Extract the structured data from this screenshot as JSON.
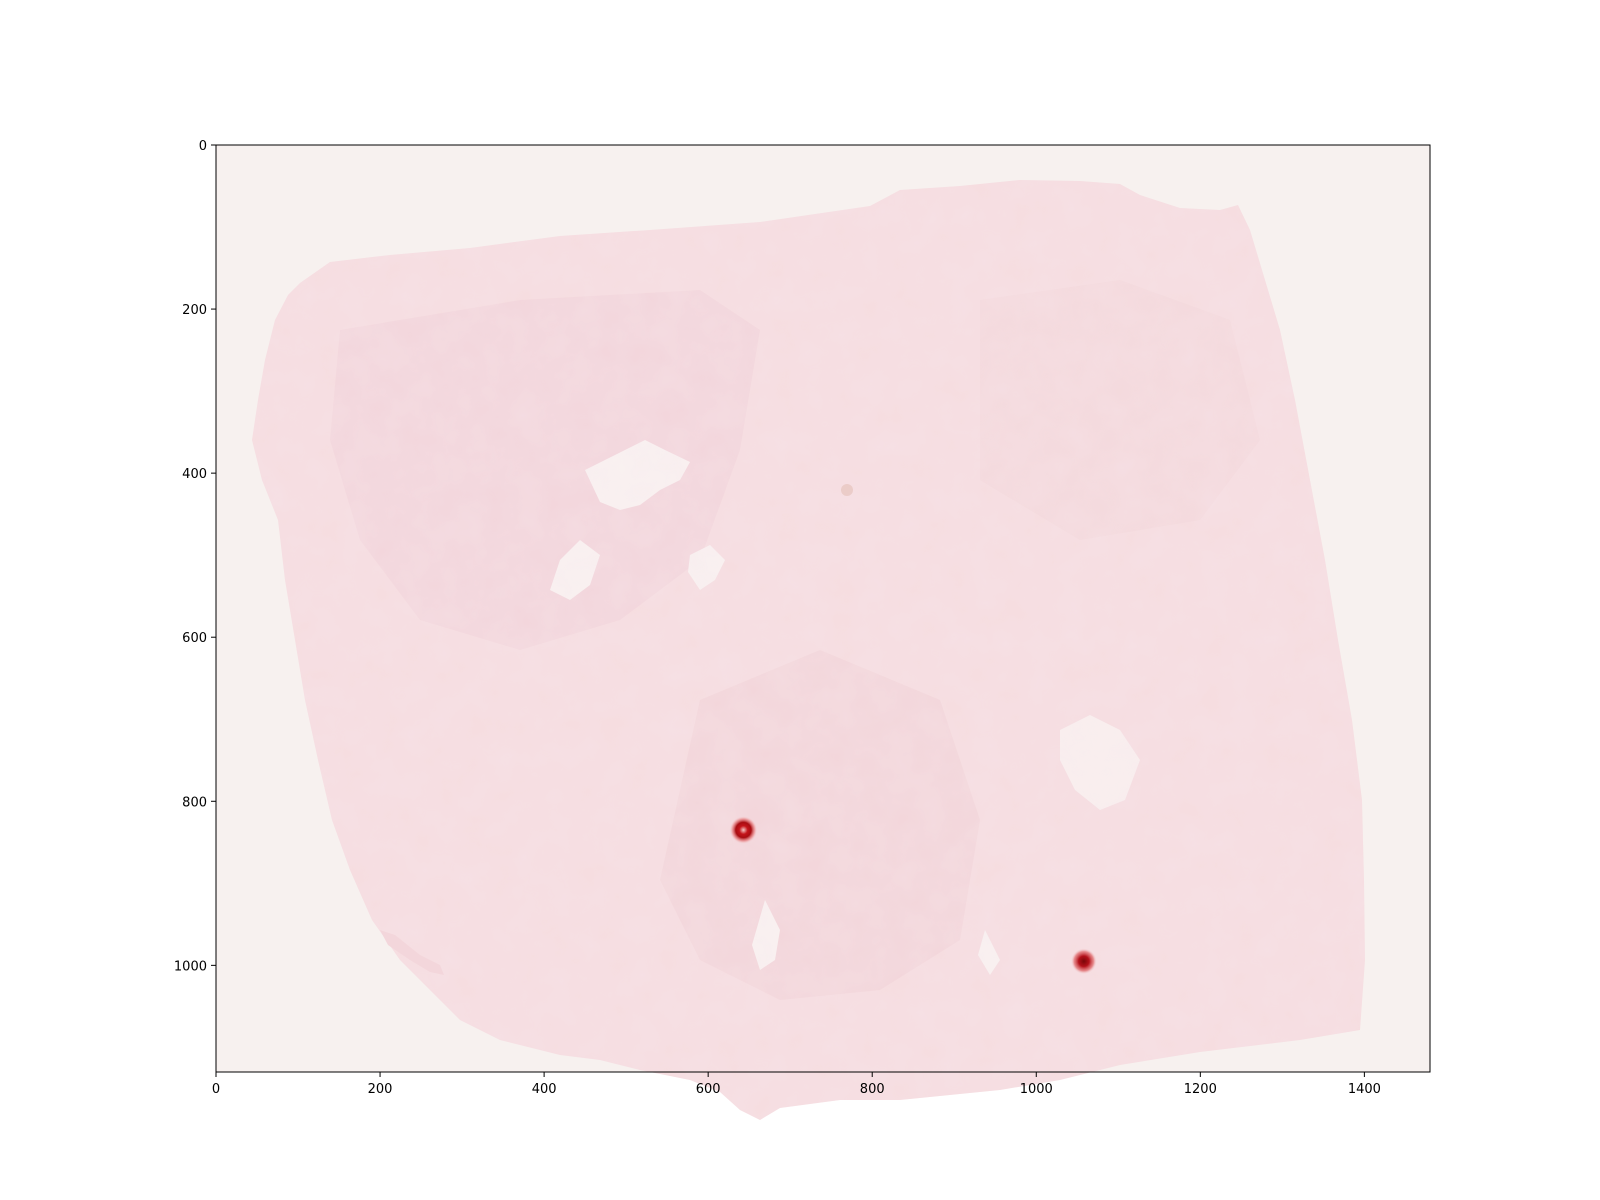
{
  "image": {
    "description_free": true,
    "colors": {
      "background": "#f7f1ef",
      "tissue": "#f6dde0",
      "tissue_dark": "#efcdd3",
      "hotspot": "#c4151b"
    }
  },
  "axes": {
    "x_ticks": [
      "0",
      "200",
      "400",
      "600",
      "800",
      "1000",
      "1200",
      "1400"
    ],
    "y_ticks": [
      "0",
      "200",
      "400",
      "600",
      "800",
      "1000"
    ],
    "xlim": [
      0,
      1480
    ],
    "ylim": [
      1130,
      0
    ]
  },
  "hotspots": [
    {
      "x": 643,
      "y": 835
    },
    {
      "x": 1058,
      "y": 995
    }
  ]
}
